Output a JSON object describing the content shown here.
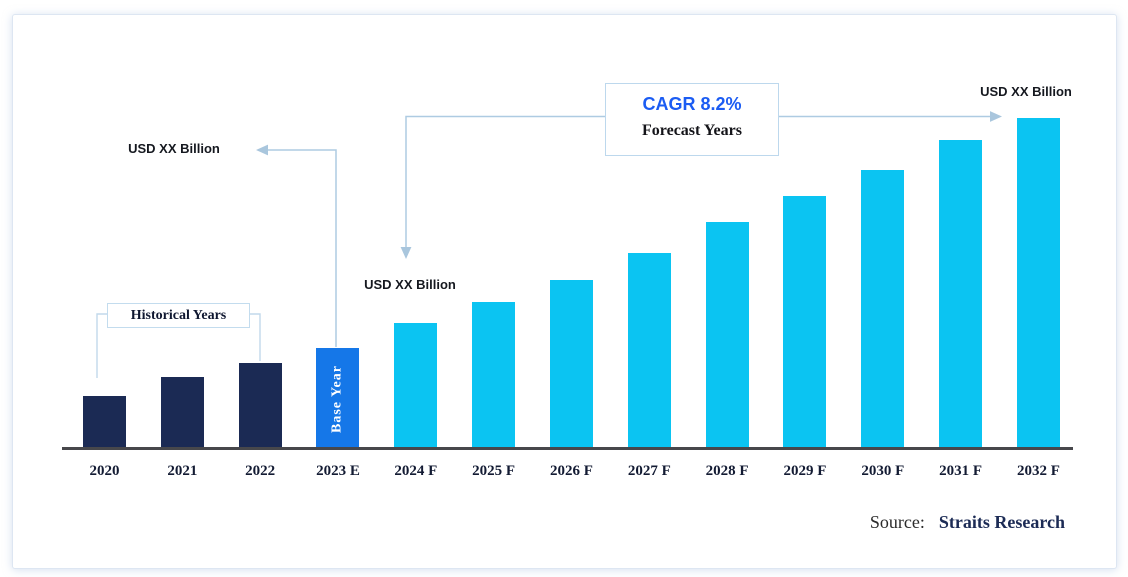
{
  "chart_data": {
    "type": "bar",
    "title": "",
    "xlabel": "",
    "ylabel": "",
    "legend_position": "none",
    "categories": [
      "2020",
      "2021",
      "2022",
      "2023 E",
      "2024 F",
      "2025 F",
      "2026 F",
      "2027 F",
      "2028 F",
      "2029 F",
      "2030 F",
      "2031 F",
      "2032 F"
    ],
    "values": [
      54,
      73,
      87,
      102,
      127,
      148,
      170,
      197,
      228,
      254,
      280,
      310,
      332
    ],
    "values_note": "No numeric axis shown; bar magnitudes estimated from pixel heights. Actual values are masked as 'USD XX Billion'.",
    "roles": [
      "historical",
      "historical",
      "historical",
      "base",
      "forecast",
      "forecast",
      "forecast",
      "forecast",
      "forecast",
      "forecast",
      "forecast",
      "forecast",
      "forecast"
    ],
    "colors": {
      "historical": "#1b2a54",
      "base": "#1577e8",
      "forecast": "#0bc4f2"
    },
    "cagr": "8.2%"
  },
  "annotations": {
    "usd_left": "USD XX Billion",
    "usd_mid": "USD XX Billion",
    "usd_right": "USD XX Billion",
    "cagr_label": "CAGR 8.2%",
    "forecast_years_label": "Forecast Years",
    "historical_years_label": "Historical Years",
    "base_year_label": "Base Year"
  },
  "source": {
    "prefix": "Source:",
    "name": "Straits Research"
  }
}
